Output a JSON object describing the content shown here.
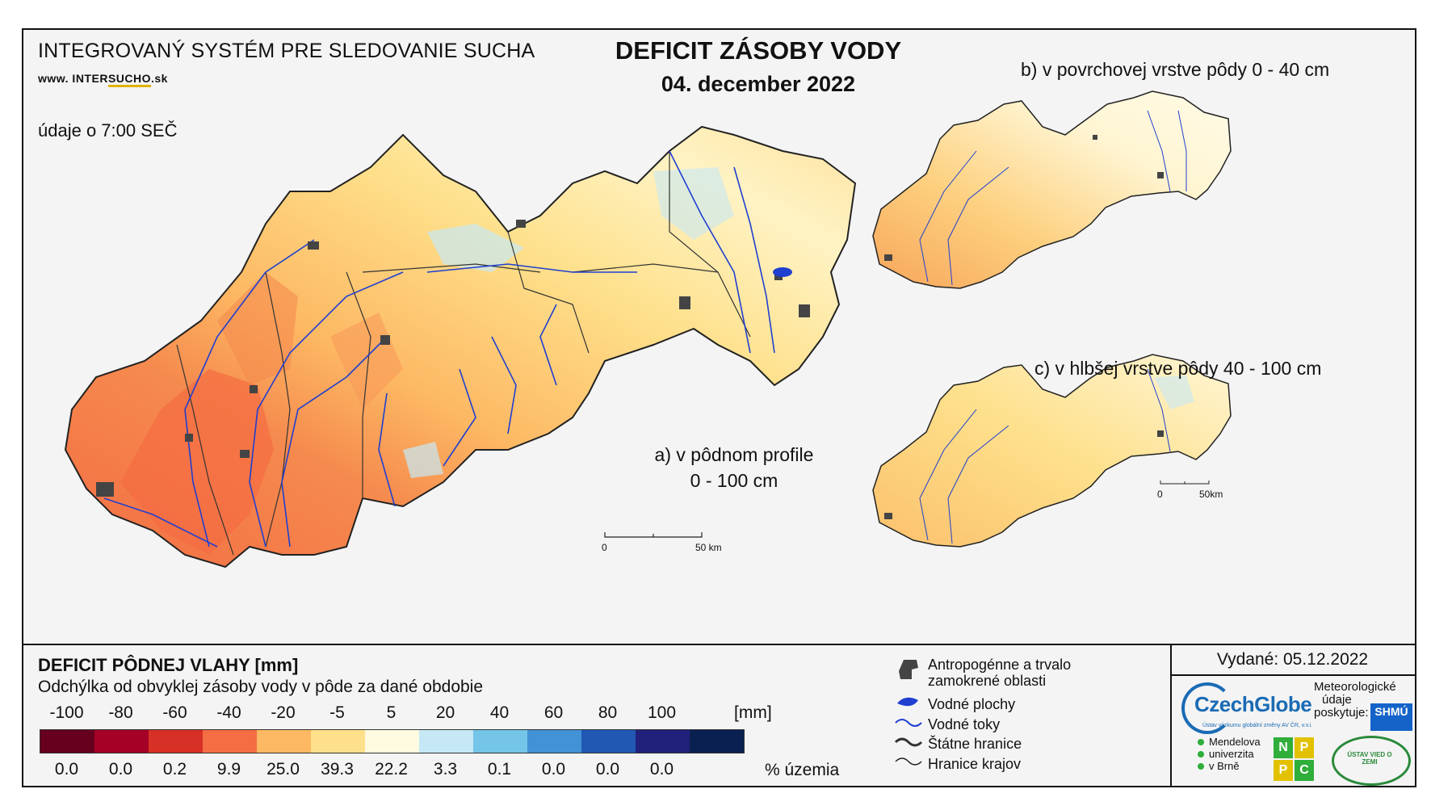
{
  "header": {
    "system_title": "INTEGROVANÝ SYSTÉM PRE SLEDOVANIE SUCHA",
    "url_prefix": "www. INTER",
    "url_accent": "SUCHO",
    "url_suffix": ".sk",
    "time_note": "údaje o 7:00 SEČ",
    "main_title": "DEFICIT ZÁSOBY VODY",
    "date": "04. december 2022"
  },
  "panels": {
    "a_line1": "a) v pôdnom profile",
    "a_line2": "0 - 100 cm",
    "b": "b) v povrchovej vrstve pôdy 0 - 40 cm",
    "c": "c) v hlbšej vrstve pôdy 40 - 100 cm"
  },
  "scalebars": {
    "main_zero": "0",
    "main_end": "50 km",
    "small_zero": "0",
    "small_end": "50km"
  },
  "legend": {
    "title": "DEFICIT PÔDNEJ VLAHY [mm]",
    "subtitle": "Odchýlka od obvyklej zásoby vody v pôde za dané obdobie",
    "unit_mm": "[mm]",
    "unit_pct": "% územia",
    "bounds": [
      "-100",
      "-80",
      "-60",
      "-40",
      "-20",
      "-5",
      "5",
      "20",
      "40",
      "60",
      "80",
      "100"
    ],
    "classes": [
      {
        "color": "#67001f",
        "pct": "0.0"
      },
      {
        "color": "#a50026",
        "pct": "0.0"
      },
      {
        "color": "#d73027",
        "pct": "0.2"
      },
      {
        "color": "#f46d43",
        "pct": "9.9"
      },
      {
        "color": "#fdb863",
        "pct": "25.0"
      },
      {
        "color": "#fee08b",
        "pct": "39.3"
      },
      {
        "color": "#fffbe0",
        "pct": "22.2"
      },
      {
        "color": "#c6e8f5",
        "pct": "3.3"
      },
      {
        "color": "#74c5e8",
        "pct": "0.1"
      },
      {
        "color": "#4292d6",
        "pct": "0.0"
      },
      {
        "color": "#2158b4",
        "pct": "0.0"
      },
      {
        "color": "#21207a",
        "pct": "0.0"
      },
      {
        "color": "#0a2050",
        "pct": ""
      }
    ]
  },
  "symbols": {
    "anthropogenic_1": "Antropogénne a trvalo",
    "anthropogenic_2": "zamokrené oblasti",
    "water_bodies": "Vodné plochy",
    "streams": "Vodné toky",
    "state_border": "Štátne hranice",
    "region_border": "Hranice krajov"
  },
  "credits": {
    "issued": "Vydané: 05.12.2022",
    "czechglobe": "CzechGlobe",
    "czechglobe_small": "Ústav výzkumu globální změny AV ČR, v.v.i.",
    "meteo_1": "Meteorologické",
    "meteo_2": "údaje",
    "meteo_3": "poskytuje:",
    "shmu": "SHMÚ",
    "mendel_1": "Mendelova",
    "mendel_2": "univerzita",
    "mendel_3": "v Brně",
    "nppc": [
      "N",
      "P",
      "P",
      "C"
    ],
    "uvz": "ÚSTAV VIED O ZEMI"
  }
}
